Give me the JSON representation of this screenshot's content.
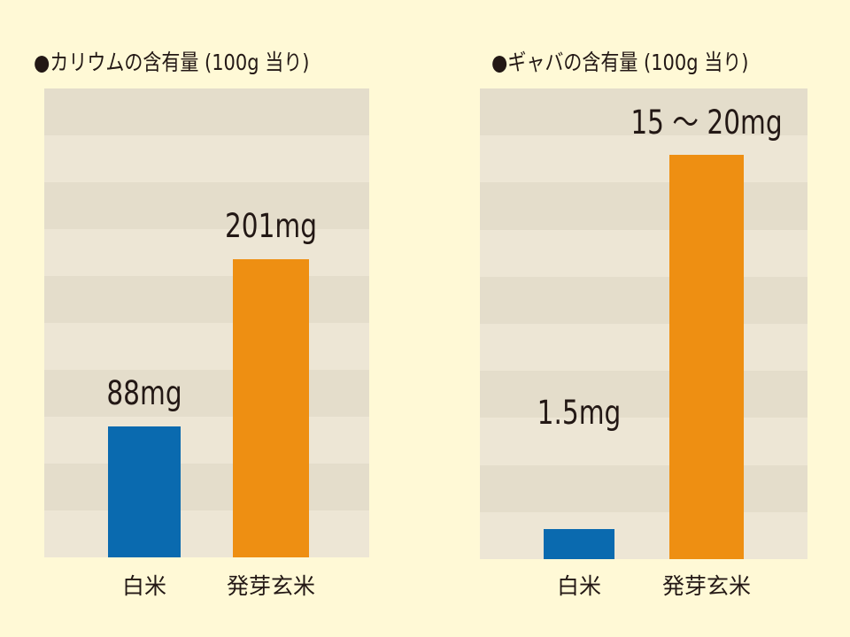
{
  "colors": {
    "background": "#FFF9D6",
    "plot_stripe_light": "#EDE6D5",
    "plot_stripe_dark": "#E4DDCB",
    "white_rice": "#0A6AAF",
    "germinated_brown_rice": "#EE8F12"
  },
  "chart_data": [
    {
      "type": "bar",
      "title": "●カリウムの含有量 (100g 当り)",
      "categories": [
        "白米",
        "発芽玄米"
      ],
      "values": [
        88,
        201
      ],
      "data_labels": [
        "88mg",
        "201mg"
      ],
      "bar_colors": [
        "#0A6AAF",
        "#EE8F12"
      ],
      "unit": "mg",
      "ylim": [
        0,
        316
      ],
      "grid": "horizontal bands",
      "legend": "none"
    },
    {
      "type": "bar",
      "title": "●ギャバの含有量 (100g 当り)",
      "categories": [
        "白米",
        "発芽玄米"
      ],
      "values": [
        1.5,
        20
      ],
      "data_labels": [
        "1.5mg",
        "15 ～ 20mg"
      ],
      "bar_colors": [
        "#0A6AAF",
        "#EE8F12"
      ],
      "unit": "mg",
      "ylim": [
        0,
        23.3
      ],
      "grid": "horizontal bands",
      "legend": "none"
    }
  ]
}
